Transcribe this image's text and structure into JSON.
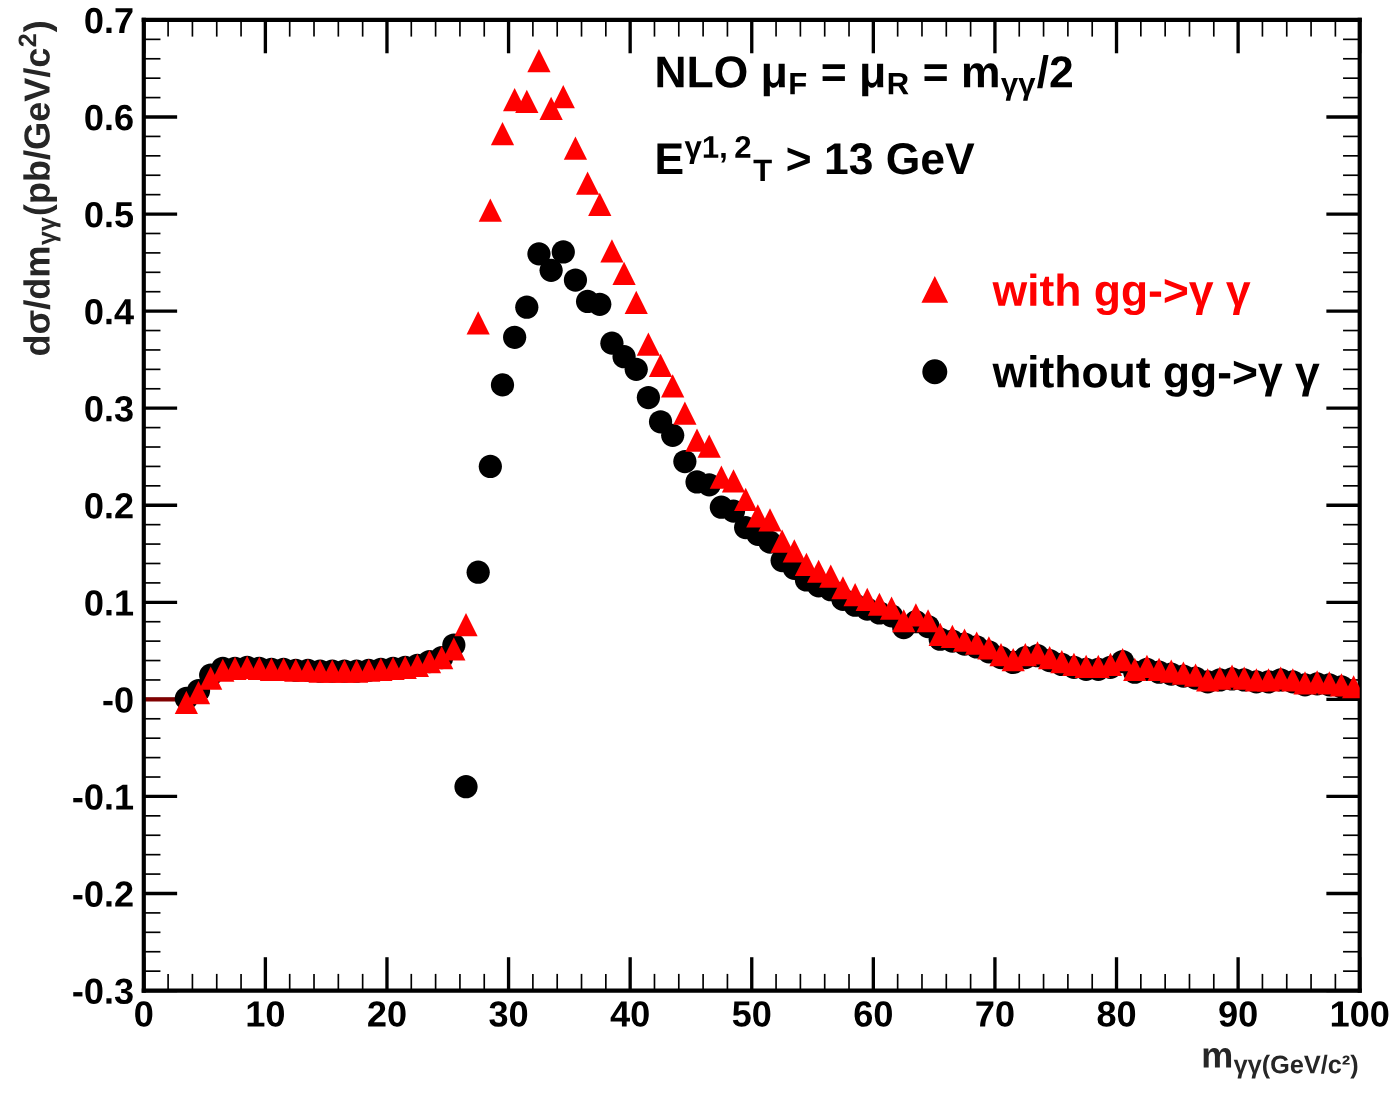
{
  "chart_data": {
    "type": "scatter",
    "xlabel": "m$_{γγ(GeV/c²)}$",
    "ylabel": "dσ/dm$_{γγ}$(pb/GeV/c$^{2}$)",
    "annotations": [
      "NLO μ$_{F}$ = μ$_{R}$ = m$_{γγ}$/2",
      "E$^{γ1,2}$$_{T}$ > 13 GeV"
    ],
    "x": [
      3.5,
      4.5,
      5.5,
      6.5,
      7.5,
      8.5,
      9.5,
      10.5,
      11.5,
      12.5,
      13.5,
      14.5,
      15.5,
      16.5,
      17.5,
      18.5,
      19.5,
      20.5,
      21.5,
      22.5,
      23.5,
      24.5,
      25.5,
      26.5,
      27.5,
      28.5,
      29.5,
      30.5,
      31.5,
      32.5,
      33.5,
      34.5,
      35.5,
      36.5,
      37.5,
      38.5,
      39.5,
      40.5,
      41.5,
      42.5,
      43.5,
      44.5,
      45.5,
      46.5,
      47.5,
      48.5,
      49.5,
      50.5,
      51.5,
      52.5,
      53.5,
      54.5,
      55.5,
      56.5,
      57.5,
      58.5,
      59.5,
      60.5,
      61.5,
      62.5,
      63.5,
      64.5,
      65.5,
      66.5,
      67.5,
      68.5,
      69.5,
      70.5,
      71.5,
      72.5,
      73.5,
      74.5,
      75.5,
      76.5,
      77.5,
      78.5,
      79.5,
      80.5,
      81.5,
      82.5,
      83.5,
      84.5,
      85.5,
      86.5,
      87.5,
      88.5,
      89.5,
      90.5,
      91.5,
      92.5,
      93.5,
      94.5,
      95.5,
      96.5,
      97.5,
      98.5,
      99.5
    ],
    "series": [
      {
        "type": "line",
        "color": "#800000",
        "marker": "none",
        "x": [
          0,
          3
        ],
        "values": [
          0,
          0
        ]
      },
      {
        "name": "without gg->γ γ",
        "color": "#000000",
        "marker": "circle",
        "values": [
          0.001,
          0.009,
          0.025,
          0.032,
          0.032,
          0.033,
          0.032,
          0.031,
          0.031,
          0.03,
          0.03,
          0.029,
          0.029,
          0.029,
          0.029,
          0.03,
          0.031,
          0.032,
          0.033,
          0.035,
          0.039,
          0.043,
          0.056,
          -0.09,
          0.131,
          0.24,
          0.324,
          0.373,
          0.404,
          0.459,
          0.442,
          0.461,
          0.432,
          0.41,
          0.407,
          0.367,
          0.353,
          0.34,
          0.311,
          0.286,
          0.272,
          0.245,
          0.224,
          0.221,
          0.198,
          0.194,
          0.177,
          0.17,
          0.162,
          0.143,
          0.135,
          0.123,
          0.117,
          0.113,
          0.103,
          0.097,
          0.093,
          0.089,
          0.086,
          0.074,
          0.08,
          0.075,
          0.062,
          0.06,
          0.057,
          0.054,
          0.049,
          0.043,
          0.038,
          0.043,
          0.045,
          0.04,
          0.036,
          0.033,
          0.031,
          0.031,
          0.033,
          0.039,
          0.028,
          0.031,
          0.028,
          0.026,
          0.024,
          0.022,
          0.018,
          0.02,
          0.021,
          0.02,
          0.018,
          0.018,
          0.02,
          0.018,
          0.015,
          0.016,
          0.015,
          0.013,
          null
        ]
      },
      {
        "name": "with gg->γ γ",
        "color": "#ff0000",
        "marker": "triangle",
        "values": [
          -0.003,
          0.007,
          0.022,
          0.03,
          0.032,
          0.033,
          0.032,
          0.031,
          0.031,
          0.03,
          0.03,
          0.029,
          0.029,
          0.029,
          0.029,
          0.03,
          0.031,
          0.032,
          0.033,
          0.035,
          0.039,
          0.043,
          0.052,
          0.077,
          0.388,
          0.504,
          0.583,
          0.618,
          0.616,
          0.658,
          0.609,
          0.621,
          0.568,
          0.532,
          0.51,
          0.462,
          0.439,
          0.409,
          0.366,
          0.344,
          0.323,
          0.295,
          0.267,
          0.261,
          0.229,
          0.225,
          0.206,
          0.189,
          0.185,
          0.163,
          0.153,
          0.139,
          0.132,
          0.127,
          0.115,
          0.108,
          0.103,
          0.098,
          0.094,
          0.081,
          0.087,
          0.081,
          0.067,
          0.065,
          0.061,
          0.058,
          0.053,
          0.046,
          0.041,
          0.046,
          0.048,
          0.043,
          0.039,
          0.036,
          0.034,
          0.034,
          0.036,
          0.041,
          0.031,
          0.034,
          0.031,
          0.029,
          0.027,
          0.025,
          0.02,
          0.022,
          0.024,
          0.022,
          0.02,
          0.02,
          0.022,
          0.02,
          0.017,
          0.018,
          0.017,
          0.015,
          0.013
        ]
      }
    ],
    "xlim": [
      0,
      100
    ],
    "xticks": [
      0,
      10,
      20,
      30,
      40,
      50,
      60,
      70,
      80,
      90,
      100
    ],
    "ylim": [
      -0.3,
      0.7
    ],
    "yticks": [
      {
        "value": -0.3,
        "label": "-0.3"
      },
      {
        "value": -0.2,
        "label": "-0.2"
      },
      {
        "value": -0.1,
        "label": "-0.1"
      },
      {
        "value": 0,
        "label": "-0"
      },
      0.1,
      0.2,
      0.3,
      0.4,
      0.5,
      0.6,
      0.7
    ],
    "grid": false,
    "legend": "top right"
  }
}
